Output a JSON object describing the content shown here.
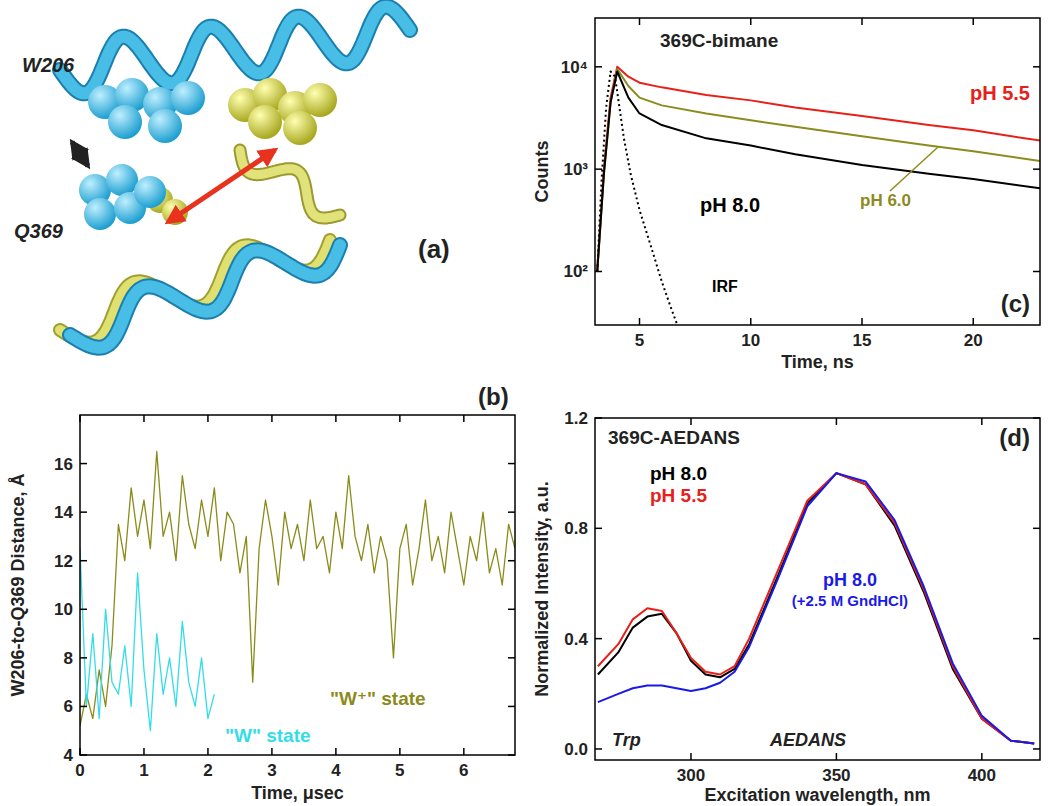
{
  "chart_data": [
    {
      "type": "line",
      "annotations": [
        "(b)"
      ],
      "x_label": "Time, μsec",
      "y_label": "W206-to-Q369 Distance, Å",
      "xlim": [
        0,
        6.8
      ],
      "xticks": [
        0,
        1,
        2,
        3,
        4,
        5,
        6
      ],
      "ylim": [
        4,
        18
      ],
      "yticks": [
        4,
        6,
        8,
        10,
        12,
        14,
        16
      ],
      "series": [
        {
          "name": "\"W⁺\" state",
          "color": "#8b8b1a",
          "x": [
            0,
            0.1,
            0.2,
            0.3,
            0.4,
            0.5,
            0.6,
            0.7,
            0.8,
            0.9,
            1.0,
            1.1,
            1.2,
            1.3,
            1.4,
            1.5,
            1.6,
            1.7,
            1.8,
            1.9,
            2.0,
            2.1,
            2.2,
            2.3,
            2.4,
            2.5,
            2.6,
            2.7,
            2.8,
            2.9,
            3.0,
            3.1,
            3.2,
            3.3,
            3.4,
            3.5,
            3.6,
            3.7,
            3.8,
            3.9,
            4.0,
            4.1,
            4.2,
            4.3,
            4.4,
            4.5,
            4.6,
            4.7,
            4.8,
            4.9,
            5.0,
            5.1,
            5.2,
            5.3,
            5.4,
            5.5,
            5.6,
            5.7,
            5.8,
            5.9,
            6.0,
            6.1,
            6.2,
            6.3,
            6.4,
            6.5,
            6.6,
            6.7,
            6.8
          ],
          "values": [
            5.2,
            6.5,
            5.5,
            7.5,
            6.0,
            8.5,
            13.5,
            12.0,
            15.0,
            13.0,
            14.5,
            12.5,
            16.5,
            13.0,
            14.0,
            12.0,
            15.5,
            13.5,
            12.5,
            14.5,
            13.0,
            15.0,
            12.0,
            14.0,
            13.5,
            11.5,
            13.0,
            7.0,
            12.5,
            14.5,
            13.0,
            11.0,
            14.0,
            12.5,
            13.5,
            12.0,
            14.5,
            12.5,
            13.0,
            11.5,
            14.0,
            12.5,
            15.5,
            13.0,
            12.0,
            13.5,
            11.5,
            13.0,
            12.0,
            8.0,
            12.5,
            13.5,
            11.0,
            12.5,
            14.5,
            12.0,
            13.0,
            11.5,
            14.0,
            12.5,
            11.0,
            13.0,
            12.0,
            14.0,
            11.5,
            12.5,
            11.0,
            13.5,
            12.5
          ]
        },
        {
          "name": "\"W\" state",
          "color": "#33dde8",
          "x": [
            0,
            0.1,
            0.2,
            0.3,
            0.4,
            0.5,
            0.6,
            0.7,
            0.8,
            0.9,
            1.0,
            1.1,
            1.2,
            1.3,
            1.4,
            1.5,
            1.6,
            1.7,
            1.8,
            1.9,
            2.0,
            2.1
          ],
          "values": [
            12.5,
            6.0,
            9.0,
            5.5,
            10.0,
            7.0,
            6.5,
            8.5,
            6.0,
            11.5,
            7.5,
            5.0,
            9.0,
            6.5,
            8.0,
            6.0,
            9.5,
            7.0,
            6.0,
            8.0,
            5.5,
            6.5
          ]
        }
      ]
    },
    {
      "type": "line",
      "title": "369C-bimane",
      "annotations": [
        "(c)"
      ],
      "x_label": "Time, ns",
      "y_label": "Counts",
      "log": "y",
      "xlim": [
        3,
        23
      ],
      "xticks": [
        5,
        10,
        15,
        20
      ],
      "ylim": [
        30,
        30000
      ],
      "yticks": [
        {
          "value": 100,
          "label": "10²"
        },
        {
          "value": 1000,
          "label": "10³"
        },
        {
          "value": 10000,
          "label": "10⁴"
        }
      ],
      "series": [
        {
          "name": "pH 5.5",
          "color": "#e8201a",
          "x": [
            3.1,
            3.4,
            3.7,
            4.0,
            4.5,
            5,
            6,
            8,
            10,
            12,
            15,
            18,
            20,
            23
          ],
          "values": [
            100,
            1000,
            5000,
            10000,
            8000,
            7000,
            6300,
            5300,
            4700,
            4000,
            3300,
            2700,
            2400,
            1900
          ]
        },
        {
          "name": "pH 6.0",
          "color": "#8c8c1e",
          "x": [
            3.1,
            3.4,
            3.7,
            4.0,
            4.5,
            5,
            6,
            8,
            10,
            12,
            15,
            18,
            20,
            23
          ],
          "values": [
            100,
            900,
            4500,
            9500,
            6500,
            5000,
            4200,
            3500,
            3000,
            2600,
            2100,
            1700,
            1500,
            1200
          ]
        },
        {
          "name": "pH 8.0",
          "color": "#000000",
          "x": [
            3.1,
            3.4,
            3.7,
            4.0,
            4.5,
            5,
            6,
            8,
            10,
            12,
            15,
            18,
            20,
            23
          ],
          "values": [
            100,
            900,
            4500,
            9000,
            5000,
            3500,
            2700,
            2000,
            1700,
            1400,
            1100,
            900,
            800,
            650
          ]
        },
        {
          "name": "IRF",
          "color": "#000000",
          "line_style": "dotted",
          "x": [
            3.1,
            3.3,
            3.5,
            3.7,
            3.9,
            4.1,
            4.3,
            4.6,
            5.0,
            5.5,
            6.0,
            6.4,
            6.7
          ],
          "values": [
            100,
            800,
            4000,
            9000,
            8000,
            4000,
            2000,
            900,
            400,
            180,
            80,
            45,
            30
          ]
        }
      ]
    },
    {
      "type": "line",
      "title": "369C-AEDANS",
      "annotations": [
        "(d)",
        "(+2.5 M GndHCl)",
        "Trp",
        "AEDANS"
      ],
      "x_label": "Excitation wavelength, nm",
      "y_label": "Normalized Intensity, a.u.",
      "xlim": [
        267,
        420
      ],
      "xticks": [
        300,
        350,
        400
      ],
      "ylim": [
        -0.04,
        1.2
      ],
      "yticks": [
        {
          "value": 0,
          "label": "0.0"
        },
        0.4,
        0.8,
        1.2
      ],
      "series": [
        {
          "name": "pH 8.0",
          "color": "#000000",
          "x": [
            268,
            275,
            280,
            285,
            290,
            295,
            300,
            305,
            310,
            315,
            320,
            330,
            340,
            350,
            360,
            370,
            380,
            390,
            400,
            410,
            418
          ],
          "values": [
            0.27,
            0.35,
            0.44,
            0.48,
            0.49,
            0.42,
            0.32,
            0.27,
            0.26,
            0.29,
            0.38,
            0.63,
            0.89,
            1.0,
            0.96,
            0.81,
            0.57,
            0.29,
            0.11,
            0.03,
            0.02
          ]
        },
        {
          "name": "pH 5.5",
          "color": "#e8201a",
          "x": [
            268,
            275,
            280,
            285,
            290,
            295,
            300,
            305,
            310,
            315,
            320,
            330,
            340,
            350,
            360,
            370,
            380,
            390,
            400,
            410,
            418
          ],
          "values": [
            0.3,
            0.38,
            0.47,
            0.51,
            0.5,
            0.42,
            0.33,
            0.28,
            0.27,
            0.3,
            0.4,
            0.65,
            0.9,
            1.0,
            0.96,
            0.82,
            0.58,
            0.3,
            0.11,
            0.03,
            0.02
          ]
        },
        {
          "name": "pH 8.0",
          "color": "#1a1ae8",
          "x": [
            268,
            275,
            280,
            285,
            290,
            295,
            300,
            305,
            310,
            315,
            320,
            330,
            340,
            350,
            360,
            370,
            380,
            390,
            400,
            410,
            418
          ],
          "values": [
            0.17,
            0.2,
            0.22,
            0.23,
            0.23,
            0.22,
            0.21,
            0.22,
            0.24,
            0.28,
            0.37,
            0.62,
            0.88,
            1.0,
            0.97,
            0.83,
            0.59,
            0.31,
            0.12,
            0.03,
            0.02
          ]
        }
      ]
    }
  ],
  "structure": {
    "labels": [
      "W206",
      "Q369",
      "(a)"
    ]
  }
}
